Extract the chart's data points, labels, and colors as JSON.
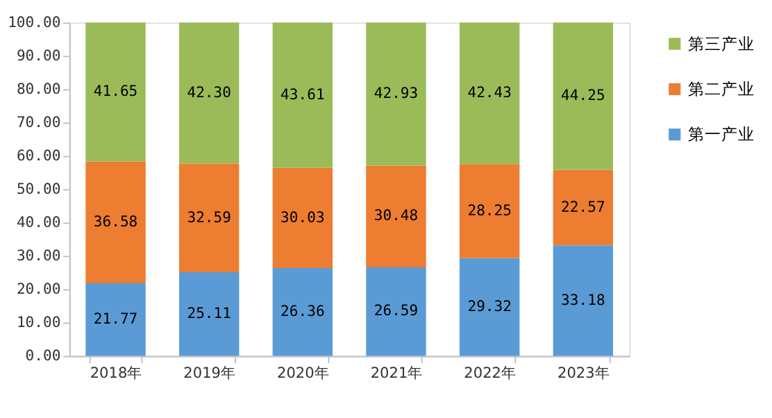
{
  "chart_data": {
    "type": "bar",
    "stacked": true,
    "categories": [
      "2018年",
      "2019年",
      "2020年",
      "2021年",
      "2022年",
      "2023年"
    ],
    "series": [
      {
        "name": "第一产业",
        "color": "#5b9bd5",
        "values": [
          21.77,
          25.11,
          26.36,
          26.59,
          29.32,
          33.18
        ],
        "value_labels": [
          "21.77",
          "25.11",
          "26.36",
          "26.59",
          "29.32",
          "33.18"
        ]
      },
      {
        "name": "第二产业",
        "color": "#ed7d31",
        "values": [
          36.58,
          32.59,
          30.03,
          30.48,
          28.25,
          22.57
        ],
        "value_labels": [
          "36.58",
          "32.59",
          "30.03",
          "30.48",
          "28.25",
          "22.57"
        ]
      },
      {
        "name": "第三产业",
        "color": "#9bbb59",
        "values": [
          41.65,
          42.3,
          43.61,
          42.93,
          42.43,
          44.25
        ],
        "value_labels": [
          "41.65",
          "42.30",
          "43.61",
          "42.93",
          "42.43",
          "44.25"
        ]
      }
    ],
    "ylim": [
      0,
      100
    ],
    "yticks": [
      {
        "value": 0,
        "label": "0.00"
      },
      {
        "value": 10,
        "label": "10.00"
      },
      {
        "value": 20,
        "label": "20.00"
      },
      {
        "value": 30,
        "label": "30.00"
      },
      {
        "value": 40,
        "label": "40.00"
      },
      {
        "value": 50,
        "label": "50.00"
      },
      {
        "value": 60,
        "label": "60.00"
      },
      {
        "value": 70,
        "label": "70.00"
      },
      {
        "value": 80,
        "label": "80.00"
      },
      {
        "value": 90,
        "label": "90.00"
      },
      {
        "value": 100,
        "label": "100.00"
      }
    ],
    "grid": false,
    "legend": "right"
  }
}
